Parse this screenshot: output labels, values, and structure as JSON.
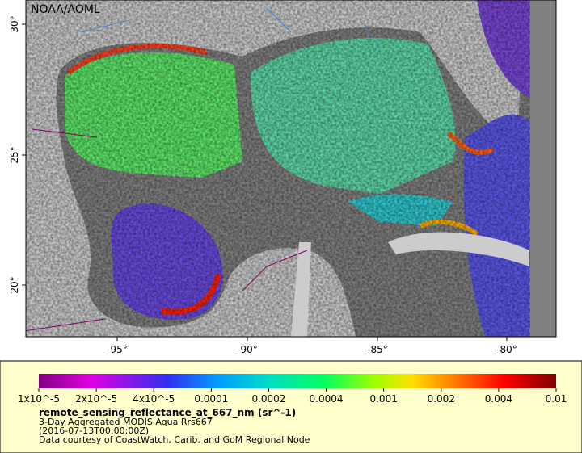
{
  "map": {
    "label": "NOAA/AOML",
    "lon_ticks": [
      "-95°",
      "-90°",
      "-85°",
      "-80°"
    ],
    "lat_ticks": [
      "30°",
      "25°",
      "20°"
    ]
  },
  "legend": {
    "tick_labels": [
      "1x10^-5",
      "2x10^-5",
      "4x10^-5",
      "0.0001",
      "0.0002",
      "0.0004",
      "0.001",
      "0.002",
      "0.004",
      "0.01"
    ],
    "title": "remote_sensing_reflectance_at_667_nm (sr^-1)",
    "lines": [
      "3-Day Aggregated MODIS Aqua Rrs667",
      "(2016-07-13T00:00:00Z)",
      "Data courtesy of CoastWatch, Carib. and GoM Regional Node"
    ]
  }
}
